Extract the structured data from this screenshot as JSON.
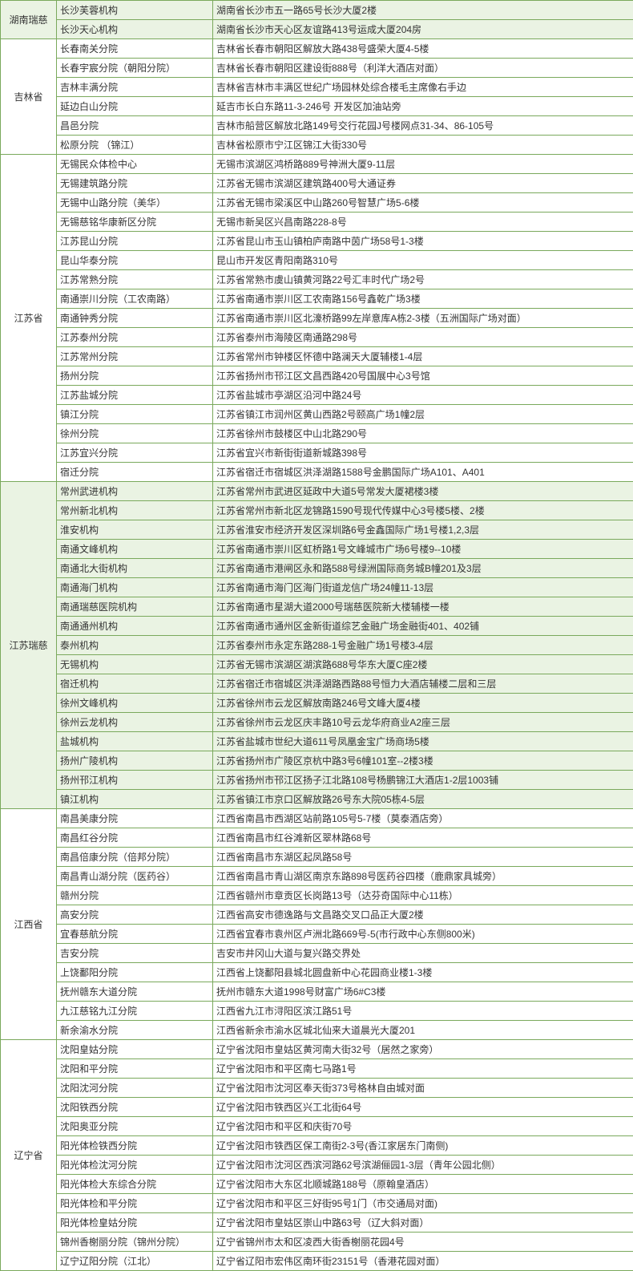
{
  "colors": {
    "border": "#7aa95c",
    "highlight_bg": "#eaf3e3",
    "normal_bg": "#ffffff",
    "text": "#333333"
  },
  "columns": {
    "province_width": 70,
    "branch_width": 195,
    "address_width": 525
  },
  "typography": {
    "font_family": "Microsoft YaHei",
    "font_size": 12
  },
  "groups": [
    {
      "province": "湖南瑞慈",
      "highlight_province": true,
      "rows": [
        {
          "hl": true,
          "branch": "长沙芙蓉机构",
          "address": "湖南省长沙市五一路65号长沙大厦2楼"
        },
        {
          "hl": true,
          "branch": "长沙天心机构",
          "address": "湖南省长沙市天心区友谊路413号运成大厦204房"
        }
      ]
    },
    {
      "province": "吉林省",
      "highlight_province": false,
      "rows": [
        {
          "hl": false,
          "branch": "长春南关分院",
          "address": "吉林省长春市朝阳区解放大路438号盛荣大厦4-5楼"
        },
        {
          "hl": false,
          "branch": "长春宇宸分院（朝阳分院）",
          "address": "吉林省长春市朝阳区建设街888号（利洋大酒店对面）"
        },
        {
          "hl": false,
          "branch": "吉林丰满分院",
          "address": "吉林省吉林市丰满区世纪广场园林处综合楼毛主席像右手边"
        },
        {
          "hl": false,
          "branch": "延边白山分院",
          "address": "延吉市长白东路11-3-246号 开发区加油站旁"
        },
        {
          "hl": false,
          "branch": "昌邑分院",
          "address": "吉林市船营区解放北路149号交行花园J号楼网点31-34、86-105号"
        },
        {
          "hl": false,
          "branch": "松原分院 （锦江）",
          "address": "吉林省松原市宁江区锦江大街330号"
        }
      ]
    },
    {
      "province": "江苏省",
      "highlight_province": false,
      "rows": [
        {
          "hl": false,
          "branch": "无锡民众体检中心",
          "address": "无锡市滨湖区鸿桥路889号神洲大厦9-11层"
        },
        {
          "hl": false,
          "branch": "无锡建筑路分院",
          "address": "江苏省无锡市滨湖区建筑路400号大通证券"
        },
        {
          "hl": false,
          "branch": "无锡中山路分院（美华）",
          "address": "江苏省无锡市梁溪区中山路260号智慧广场5-6楼"
        },
        {
          "hl": false,
          "branch": "无锡慈铭华康新区分院",
          "address": "无锡市新吴区兴昌南路228-8号"
        },
        {
          "hl": false,
          "branch": "江苏昆山分院",
          "address": "江苏省昆山市玉山镇柏庐南路中茵广场58号1-3楼"
        },
        {
          "hl": false,
          "branch": "昆山华泰分院",
          "address": "昆山市开发区青阳南路310号"
        },
        {
          "hl": false,
          "branch": "江苏常熟分院",
          "address": "江苏省常熟市虞山镇黄河路22号汇丰时代广场2号"
        },
        {
          "hl": false,
          "branch": "南通崇川分院（工农南路）",
          "address": "江苏省南通市崇川区工农南路156号鑫乾广场3楼"
        },
        {
          "hl": false,
          "branch": "南通钟秀分院",
          "address": "江苏省南通市崇川区北濠桥路99左岸意库A栋2-3楼（五洲国际广场对面）"
        },
        {
          "hl": false,
          "branch": "江苏泰州分院",
          "address": "江苏省泰州市海陵区南通路298号"
        },
        {
          "hl": false,
          "branch": "江苏常州分院",
          "address": "江苏省常州市钟楼区怀德中路澜天大厦辅楼1-4层"
        },
        {
          "hl": false,
          "branch": "扬州分院",
          "address": "江苏省扬州市邗江区文昌西路420号国展中心3号馆"
        },
        {
          "hl": false,
          "branch": "江苏盐城分院",
          "address": "江苏省盐城市亭湖区沿河中路24号"
        },
        {
          "hl": false,
          "branch": "镇江分院",
          "address": "江苏省镇江市润州区黄山西路2号颐高广场1幢2层"
        },
        {
          "hl": false,
          "branch": "徐州分院",
          "address": "江苏省徐州市鼓楼区中山北路290号"
        },
        {
          "hl": false,
          "branch": "江苏宜兴分院",
          "address": "江苏省宜兴市新街街道新城路398号"
        },
        {
          "hl": false,
          "branch": "宿迁分院",
          "address": "江苏省宿迁市宿城区洪泽湖路1588号金鹏国际广场A101、A401"
        }
      ]
    },
    {
      "province": "江苏瑞慈",
      "highlight_province": true,
      "rows": [
        {
          "hl": true,
          "branch": "常州武进机构",
          "address": "江苏省常州市武进区延政中大道5号常发大厦裙楼3楼"
        },
        {
          "hl": true,
          "branch": "常州新北机构",
          "address": "江苏省常州市新北区龙锦路1590号现代传媒中心3号楼5楼、2楼"
        },
        {
          "hl": true,
          "branch": "淮安机构",
          "address": "江苏省淮安市经济开发区深圳路6号金鑫国际广场1号楼1,2,3层"
        },
        {
          "hl": true,
          "branch": "南通文峰机构",
          "address": "江苏省南通市崇川区虹桥路1号文峰城市广场6号楼9--10楼"
        },
        {
          "hl": true,
          "branch": "南通北大街机构",
          "address": "江苏省南通市港闸区永和路588号绿洲国际商务城B幢201及3层"
        },
        {
          "hl": true,
          "branch": "南通海门机构",
          "address": "江苏省南通市海门区海门街道龙信广场24幢11-13层"
        },
        {
          "hl": true,
          "branch": "南通瑞慈医院机构",
          "address": "江苏省南通市星湖大道2000号瑞慈医院新大楼辅楼一楼"
        },
        {
          "hl": true,
          "branch": "南通通州机构",
          "address": "江苏省南通市通州区金新街道综艺金融广场金融街401、402铺"
        },
        {
          "hl": true,
          "branch": "泰州机构",
          "address": "江苏省泰州市永定东路288-1号金融广场1号楼3-4层"
        },
        {
          "hl": true,
          "branch": "无锡机构",
          "address": "江苏省无锡市滨湖区湖滨路688号华东大厦C座2楼"
        },
        {
          "hl": true,
          "branch": "宿迁机构",
          "address": "江苏省宿迁市宿城区洪泽湖路西路88号恒力大酒店辅楼二层和三层"
        },
        {
          "hl": true,
          "branch": "徐州文峰机构",
          "address": "江苏省徐州市云龙区解放南路246号文峰大厦4楼"
        },
        {
          "hl": true,
          "branch": "徐州云龙机构",
          "address": "江苏省徐州市云龙区庆丰路10号云龙华府商业A2座三层"
        },
        {
          "hl": true,
          "branch": "盐城机构",
          "address": "江苏省盐城市世纪大道611号凤凰金宝广场商场5楼"
        },
        {
          "hl": true,
          "branch": "扬州广陵机构",
          "address": "江苏省扬州市广陵区京杭中路3号6幢101室--2楼3楼"
        },
        {
          "hl": true,
          "branch": "扬州邗江机构",
          "address": "江苏省扬州市邗江区扬子江北路108号杨鹏锦江大酒店1-2层1003铺"
        },
        {
          "hl": true,
          "branch": "镇江机构",
          "address": "江苏省镇江市京口区解放路26号东大院05栋4-5层"
        }
      ]
    },
    {
      "province": "江西省",
      "highlight_province": false,
      "rows": [
        {
          "hl": false,
          "branch": "南昌美康分院",
          "address": "江西省南昌市西湖区站前路105号5-7楼（莫泰酒店旁）"
        },
        {
          "hl": false,
          "branch": "南昌红谷分院",
          "address": "江西省南昌市红谷滩新区翠林路68号"
        },
        {
          "hl": false,
          "branch": "南昌倍康分院（倍邦分院）",
          "address": "江西省南昌市东湖区起凤路58号"
        },
        {
          "hl": false,
          "branch": "南昌青山湖分院（医药谷）",
          "address": "江西省南昌市青山湖区南京东路898号医药谷四楼（鹿鼎家具城旁）"
        },
        {
          "hl": false,
          "branch": "赣州分院",
          "address": "江西省赣州市章贡区长岗路13号（达芬奇国际中心11栋）"
        },
        {
          "hl": false,
          "branch": "高安分院",
          "address": "江西省高安市德逸路与文昌路交叉口品正大厦2楼"
        },
        {
          "hl": false,
          "branch": "宜春慈航分院",
          "address": "江西省宜春市袁州区卢洲北路669号-5(市行政中心东侧800米)"
        },
        {
          "hl": false,
          "branch": "吉安分院",
          "address": "吉安市井冈山大道与复兴路交界处"
        },
        {
          "hl": false,
          "branch": "上饶鄱阳分院",
          "address": "江西省上饶鄱阳县城北圆盘新中心花园商业楼1-3楼"
        },
        {
          "hl": false,
          "branch": "抚州赣东大道分院",
          "address": "抚州市赣东大道1998号财富广场6#C3楼"
        },
        {
          "hl": false,
          "branch": "九江慈铭九江分院",
          "address": "江西省九江市浔阳区滨江路51号"
        },
        {
          "hl": false,
          "branch": "新余渝水分院",
          "address": "江西省新余市渝水区城北仙来大道晨光大厦201"
        }
      ]
    },
    {
      "province": "辽宁省",
      "highlight_province": false,
      "rows": [
        {
          "hl": false,
          "branch": "沈阳皇姑分院",
          "address": "辽宁省沈阳市皇姑区黄河南大街32号（居然之家旁）"
        },
        {
          "hl": false,
          "branch": "沈阳和平分院",
          "address": "辽宁省沈阳市和平区南七马路1号"
        },
        {
          "hl": false,
          "branch": "沈阳沈河分院",
          "address": "辽宁省沈阳市沈河区奉天街373号格林自由城对面"
        },
        {
          "hl": false,
          "branch": "沈阳铁西分院",
          "address": "辽宁省沈阳市铁西区兴工北街64号"
        },
        {
          "hl": false,
          "branch": "沈阳奥亚分院",
          "address": "辽宁省沈阳市和平区和庆街70号"
        },
        {
          "hl": false,
          "branch": "阳光体检铁西分院",
          "address": "辽宁省沈阳市铁西区保工南街2-3号(香江家居东门南侧)"
        },
        {
          "hl": false,
          "branch": "阳光体检沈河分院",
          "address": "辽宁省沈阳市沈河区西滨河路62号滨湖俪园1-3层（青年公园北侧）"
        },
        {
          "hl": false,
          "branch": "阳光体检大东综合分院",
          "address": "辽宁省沈阳市大东区北顺城路188号（原翰皇酒店）"
        },
        {
          "hl": false,
          "branch": "阳光体检和平分院",
          "address": "辽宁省沈阳市和平区三好街95号1门（市交通局对面)"
        },
        {
          "hl": false,
          "branch": "阳光体检皇姑分院",
          "address": "辽宁省沈阳市皇姑区崇山中路63号（辽大斜对面）"
        },
        {
          "hl": false,
          "branch": "锦州香榭丽分院（锦州分院）",
          "address": "辽宁省锦州市太和区凌西大街香榭丽花园4号"
        },
        {
          "hl": false,
          "branch": "辽宁辽阳分院（江北）",
          "address": "辽宁省辽阳市宏伟区南环街23151号（香港花园对面）"
        }
      ]
    }
  ]
}
